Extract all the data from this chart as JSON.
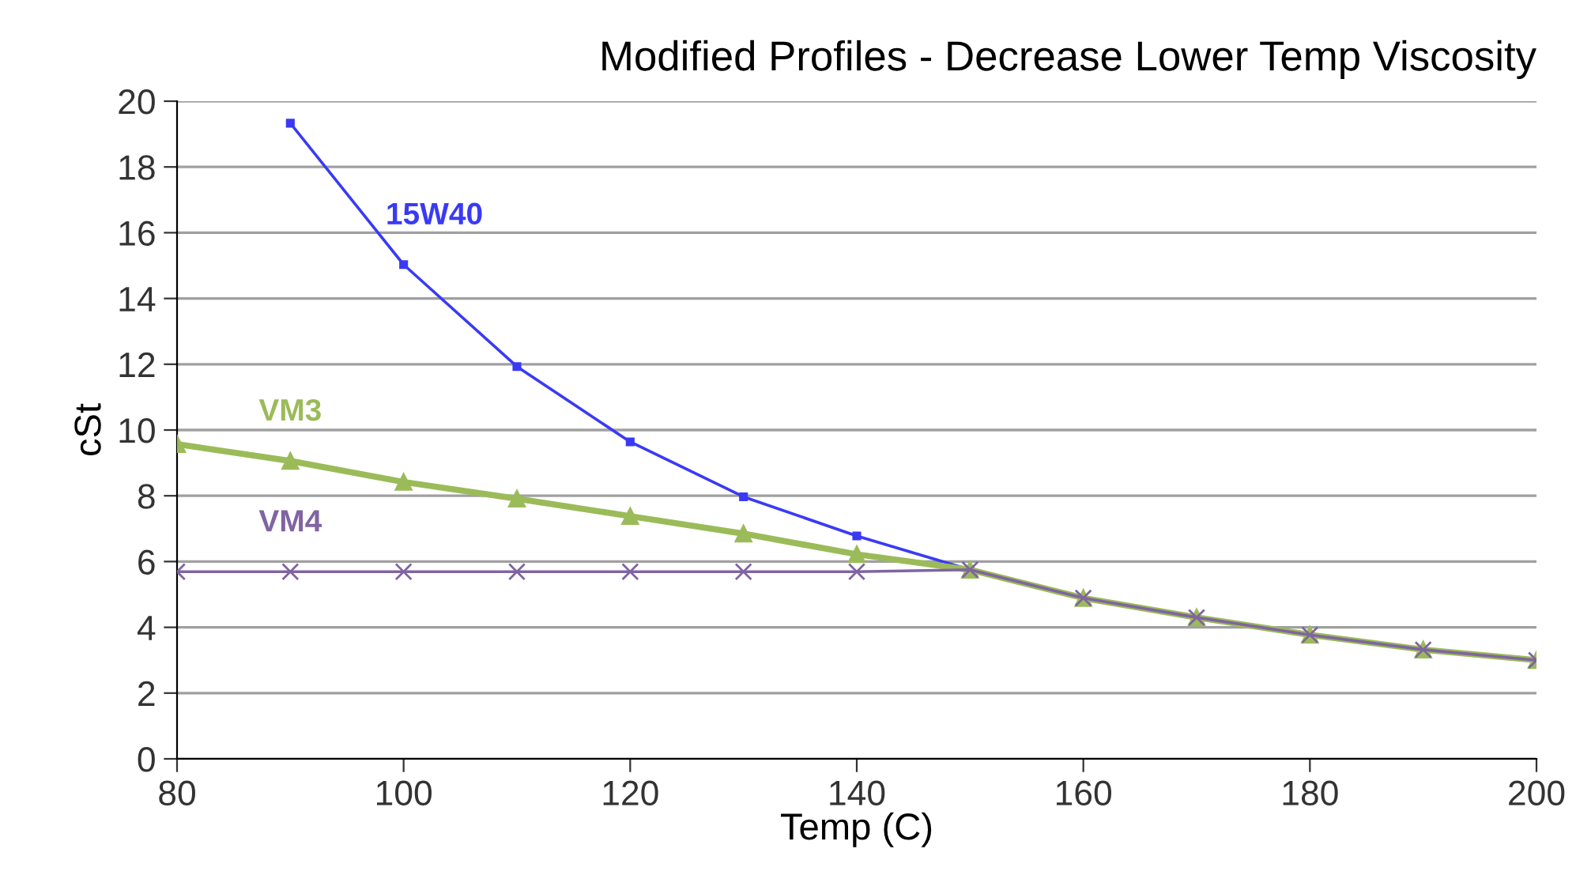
{
  "chart_data": {
    "type": "line",
    "title": "Modified Profiles - Decrease Lower Temp Viscosity",
    "xlabel": "Temp (C)",
    "ylabel": "cSt",
    "series": [
      {
        "name": "15W40",
        "color": "#3a3af5",
        "marker": "square",
        "x": [
          90,
          100,
          110,
          120,
          130,
          140,
          150
        ],
        "values": [
          19.33,
          15.03,
          11.93,
          9.64,
          7.97,
          6.78,
          5.75
        ]
      },
      {
        "name": "VM3",
        "color": "#9bbb59",
        "marker": "triangle",
        "x": [
          80,
          90,
          100,
          110,
          120,
          130,
          140,
          150,
          160,
          170,
          180,
          190,
          200
        ],
        "values": [
          9.57,
          9.06,
          8.42,
          7.91,
          7.38,
          6.85,
          6.22,
          5.75,
          4.89,
          4.3,
          3.77,
          3.32,
          3.0
        ]
      },
      {
        "name": "VM4",
        "color": "#8064a2",
        "marker": "cross",
        "x": [
          80,
          90,
          100,
          110,
          120,
          130,
          140,
          150,
          160,
          170,
          180,
          190,
          200
        ],
        "values": [
          5.69,
          5.69,
          5.69,
          5.69,
          5.69,
          5.69,
          5.69,
          5.75,
          4.89,
          4.3,
          3.77,
          3.32,
          3.0
        ]
      }
    ],
    "xlim": [
      80,
      200
    ],
    "xticks": [
      80,
      100,
      120,
      140,
      160,
      180,
      200
    ],
    "ylim": [
      0,
      20
    ],
    "yticks": [
      0,
      2,
      4,
      6,
      8,
      10,
      12,
      14,
      16,
      18,
      20
    ],
    "grid": "y",
    "legend": false
  }
}
